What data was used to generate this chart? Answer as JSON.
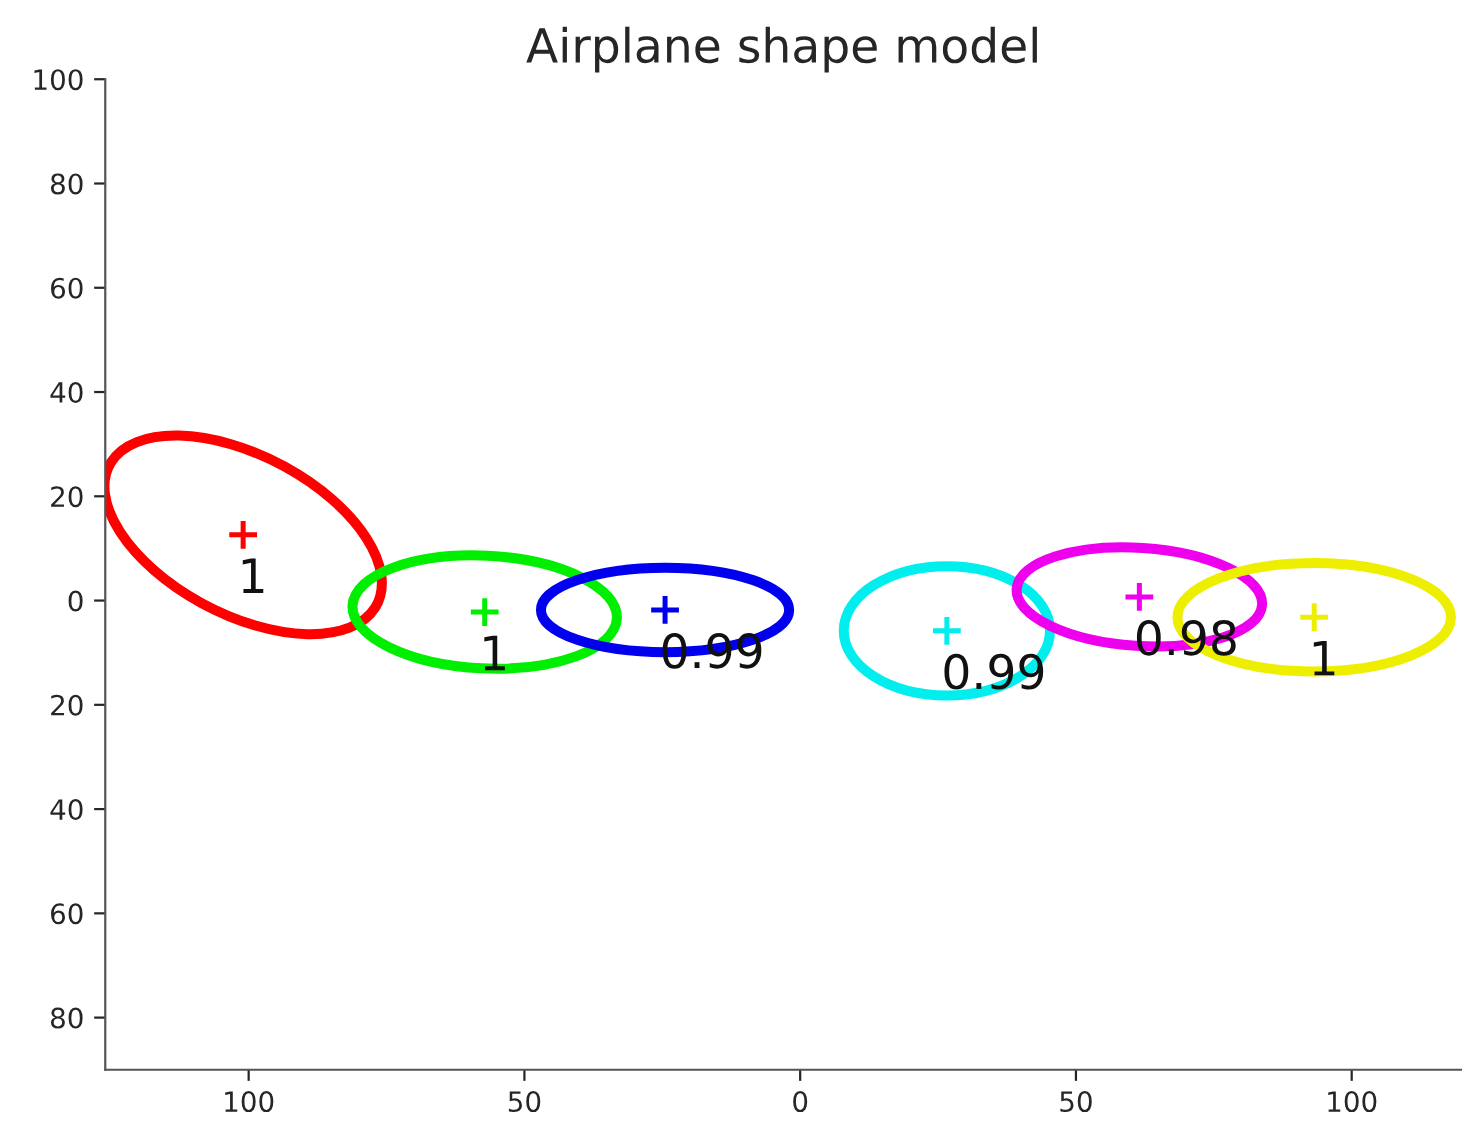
{
  "chart_data": {
    "type": "scatter",
    "title": "Airplane shape model",
    "xlim": [
      -126,
      120
    ],
    "ylim": [
      -90,
      100
    ],
    "xticks": [
      {
        "value": -100,
        "label": "100"
      },
      {
        "value": -50,
        "label": "50"
      },
      0,
      50,
      100
    ],
    "yticks": [
      {
        "value": -80,
        "label": "80"
      },
      {
        "value": -60,
        "label": "60"
      },
      {
        "value": -40,
        "label": "40"
      },
      {
        "value": -20,
        "label": "20"
      },
      0,
      20,
      40,
      60,
      80,
      100
    ],
    "grid": false,
    "marker": "cross",
    "x": [
      -101.0,
      -57.2,
      -24.5,
      26.6,
      61.5,
      93.2
    ],
    "values": [
      12.6,
      -2.2,
      -1.8,
      -5.8,
      0.7,
      -3.2
    ],
    "colors": [
      "#ff0000",
      "#00ee00",
      "#0000ee",
      "#00eeee",
      "#ee00ee",
      "#eeee00"
    ],
    "annotations": [
      {
        "text": "1",
        "x": -101.0,
        "y": 12.6
      },
      {
        "text": "1",
        "x": -57.2,
        "y": -2.2
      },
      {
        "text": "0.99",
        "x": -24.5,
        "y": -1.8
      },
      {
        "text": "0.99",
        "x": 26.6,
        "y": -5.8
      },
      {
        "text": "0.98",
        "x": 61.5,
        "y": 0.7
      },
      {
        "text": "1",
        "x": 93.2,
        "y": -3.2
      }
    ]
  }
}
